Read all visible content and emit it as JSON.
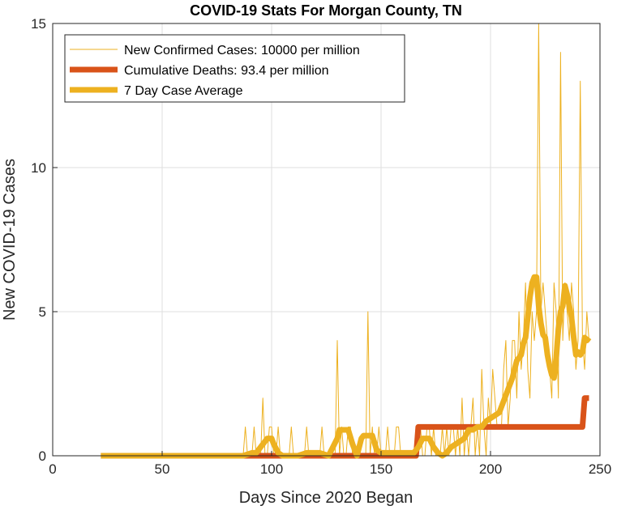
{
  "chart_data": {
    "type": "line",
    "title": "COVID-19 Stats For Morgan County, TN",
    "xlabel": "Days Since 2020 Began",
    "ylabel": "New COVID-19 Cases",
    "xlim": [
      0,
      250
    ],
    "ylim": [
      0,
      15
    ],
    "xticks": [
      0,
      50,
      100,
      150,
      200,
      250
    ],
    "yticks": [
      0,
      5,
      10,
      15
    ],
    "grid": true,
    "legend_position": "top-left",
    "series": [
      {
        "name": "New Confirmed Cases: 10000 per million",
        "color": "#EDB120",
        "style": "thin",
        "x": [
          22,
          87,
          88,
          89,
          90,
          91,
          92,
          93,
          94,
          95,
          96,
          97,
          98,
          99,
          100,
          101,
          102,
          103,
          104,
          105,
          106,
          107,
          108,
          109,
          110,
          111,
          112,
          113,
          114,
          115,
          116,
          117,
          118,
          119,
          120,
          121,
          122,
          123,
          124,
          125,
          126,
          127,
          128,
          129,
          130,
          131,
          132,
          133,
          134,
          135,
          136,
          137,
          138,
          139,
          140,
          141,
          142,
          143,
          144,
          145,
          146,
          147,
          148,
          149,
          150,
          151,
          152,
          153,
          154,
          155,
          156,
          157,
          158,
          159,
          160,
          161,
          162,
          163,
          164,
          165,
          166,
          167,
          168,
          169,
          170,
          171,
          172,
          173,
          174,
          175,
          176,
          177,
          178,
          179,
          180,
          181,
          182,
          183,
          184,
          185,
          186,
          187,
          188,
          189,
          190,
          191,
          192,
          193,
          194,
          195,
          196,
          197,
          198,
          199,
          200,
          201,
          202,
          203,
          204,
          205,
          206,
          207,
          208,
          209,
          210,
          211,
          212,
          213,
          214,
          215,
          216,
          217,
          218,
          219,
          220,
          221,
          222,
          223,
          224,
          225,
          226,
          227,
          228,
          229,
          230,
          231,
          232,
          233,
          234,
          235,
          236,
          237,
          238,
          239,
          240,
          241,
          242,
          243,
          244,
          245
        ],
        "y": [
          0,
          0,
          1,
          0,
          0,
          0,
          1,
          0,
          0,
          0,
          2,
          0,
          0,
          1,
          1,
          0,
          0,
          1,
          0,
          0,
          0,
          0,
          0,
          1,
          0,
          0,
          0,
          0,
          0,
          0,
          1,
          0,
          0,
          0,
          0,
          0,
          0,
          1,
          0,
          0,
          0,
          0,
          0,
          0,
          4,
          0,
          1,
          0,
          0,
          1,
          1,
          0,
          0,
          0,
          0,
          0,
          0,
          0,
          5,
          0,
          1,
          0,
          0,
          1,
          0,
          0,
          0,
          1,
          0,
          0,
          0,
          1,
          1,
          0,
          0,
          0,
          0,
          0,
          0,
          0,
          1,
          0,
          1,
          0,
          0,
          1,
          1,
          0,
          1,
          0,
          0,
          0,
          1,
          0,
          1,
          0,
          1,
          1,
          0,
          1,
          0,
          2,
          0,
          1,
          0,
          1,
          2,
          0,
          1,
          0,
          3,
          1,
          0,
          2,
          1,
          3,
          2,
          1,
          1,
          1,
          3,
          4,
          1,
          2,
          4,
          4,
          2,
          5,
          3,
          4,
          6,
          3,
          2,
          5,
          4,
          5,
          15,
          5,
          6,
          5,
          4,
          3,
          2,
          6,
          5,
          2,
          14,
          4,
          6,
          5,
          4,
          6,
          5,
          3,
          4,
          13,
          4,
          3,
          5,
          4
        ]
      },
      {
        "name": "Cumulative Deaths: 93.4 per million",
        "color": "#D95319",
        "style": "thick",
        "x": [
          22,
          87,
          88,
          95,
          96,
          106,
          107,
          117,
          118,
          127,
          128,
          130,
          131,
          166,
          167,
          168,
          240,
          241,
          242,
          243,
          244,
          245
        ],
        "y": [
          0,
          0,
          0,
          0,
          0,
          0,
          0,
          0,
          0,
          0,
          0,
          0,
          0,
          0,
          1,
          1,
          1,
          1,
          1,
          2,
          2,
          2
        ]
      },
      {
        "name": "7 Day Case Average",
        "color": "#EDB120",
        "style": "thick",
        "x": [
          22,
          87,
          91,
          93,
          95,
          97,
          98,
          99,
          100,
          101,
          103,
          105,
          107,
          112,
          116,
          118,
          122,
          126,
          128,
          130,
          131,
          133,
          134,
          135,
          137,
          139,
          141,
          142,
          144,
          146,
          148,
          150,
          152,
          155,
          157,
          160,
          163,
          165,
          167,
          169,
          171,
          172,
          174,
          176,
          178,
          180,
          182,
          184,
          186,
          188,
          190,
          192,
          194,
          196,
          198,
          200,
          202,
          204,
          206,
          208,
          210,
          212,
          214,
          215,
          216,
          217,
          218,
          219,
          220,
          221,
          222,
          223,
          224,
          225,
          226,
          227,
          228,
          229,
          230,
          231,
          232,
          233,
          234,
          235,
          236,
          237,
          238,
          239,
          240,
          241,
          242,
          243,
          244,
          245
        ],
        "y": [
          0,
          0,
          0.1,
          0.1,
          0.3,
          0.5,
          0.6,
          0.6,
          0.6,
          0.4,
          0.1,
          0,
          0,
          0,
          0.1,
          0.1,
          0.1,
          0,
          0.3,
          0.6,
          0.9,
          0.9,
          0.9,
          0.9,
          0.4,
          0,
          0.6,
          0.7,
          0.7,
          0.7,
          0.2,
          0.1,
          0.1,
          0.1,
          0.1,
          0.1,
          0.1,
          0.1,
          0.3,
          0.6,
          0.6,
          0.6,
          0.3,
          0.1,
          0,
          0.1,
          0.3,
          0.4,
          0.5,
          0.6,
          0.9,
          0.9,
          1,
          1,
          1.2,
          1.3,
          1.4,
          1.5,
          1.9,
          2.3,
          2.7,
          3.3,
          3.5,
          3.9,
          4.1,
          4.8,
          5.5,
          6,
          6.2,
          6.2,
          5.2,
          4.6,
          4.2,
          4.1,
          3.5,
          3.1,
          2.8,
          2.7,
          3.4,
          4.4,
          5,
          5.2,
          5.9,
          5.6,
          5.2,
          4.8,
          4.1,
          3.5,
          3.6,
          3.5,
          3.6,
          4.1,
          4,
          4.1
        ]
      }
    ]
  }
}
